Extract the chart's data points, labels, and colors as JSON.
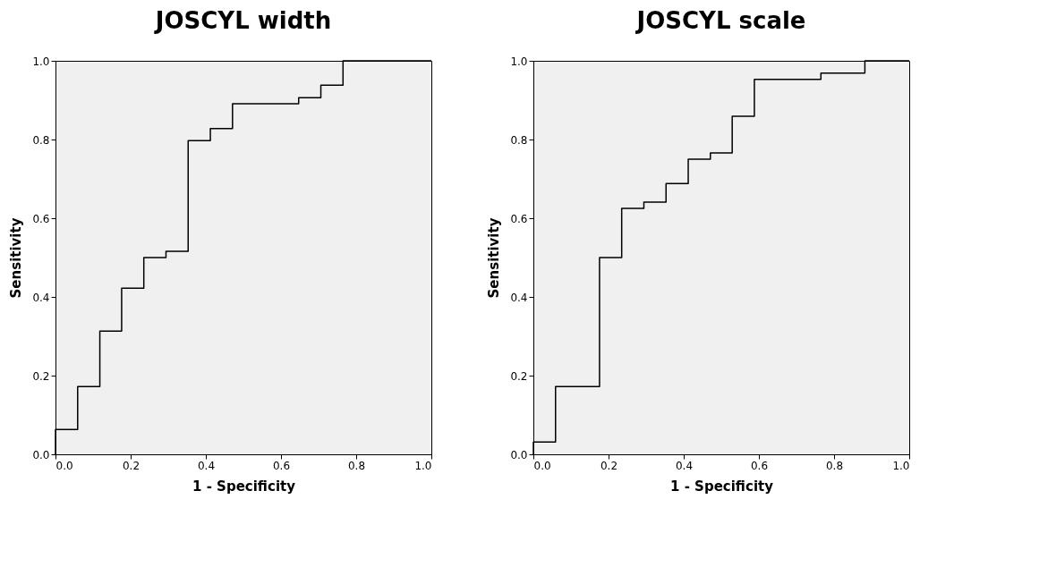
{
  "chart_data": [
    {
      "type": "step",
      "title": "JOSCYL width",
      "xlabel": "1 - Specificity",
      "ylabel": "Sensitivity",
      "xlim": [
        0,
        1
      ],
      "ylim": [
        0,
        1
      ],
      "xticks": [
        {
          "value": 0,
          "label": "0.0"
        },
        {
          "value": 0.2,
          "label": "0.2"
        },
        {
          "value": 0.4,
          "label": "0.4"
        },
        {
          "value": 0.6,
          "label": "0.6"
        },
        {
          "value": 0.8,
          "label": "0.8"
        },
        {
          "value": 1,
          "label": "1.0"
        }
      ],
      "yticks": [
        {
          "value": 0,
          "label": "0.0"
        },
        {
          "value": 0.2,
          "label": "0.2"
        },
        {
          "value": 0.4,
          "label": "0.4"
        },
        {
          "value": 0.6,
          "label": "0.6"
        },
        {
          "value": 0.8,
          "label": "0.8"
        },
        {
          "value": 1,
          "label": "1.0"
        }
      ],
      "grid": false,
      "marker": "none",
      "line_style": "solid",
      "series": [
        {
          "color": "#000000",
          "x": [
            0,
            0,
            0.059,
            0.118,
            0.176,
            0.235,
            0.294,
            0.353,
            0.353,
            0.412,
            0.471,
            0.647,
            0.706,
            0.765,
            1.0
          ],
          "values": [
            0,
            0.063,
            0.172,
            0.313,
            0.422,
            0.5,
            0.516,
            0.531,
            0.797,
            0.828,
            0.891,
            0.906,
            0.938,
            1.0,
            1.0
          ]
        }
      ]
    },
    {
      "type": "step",
      "title": "JOSCYL scale",
      "xlabel": "1 - Specificity",
      "ylabel": "Sensitivity",
      "xlim": [
        0,
        1
      ],
      "ylim": [
        0,
        1
      ],
      "xticks": [
        {
          "value": 0,
          "label": "0.0"
        },
        {
          "value": 0.2,
          "label": "0.2"
        },
        {
          "value": 0.4,
          "label": "0.4"
        },
        {
          "value": 0.6,
          "label": "0.6"
        },
        {
          "value": 0.8,
          "label": "0.8"
        },
        {
          "value": 1,
          "label": "1.0"
        }
      ],
      "yticks": [
        {
          "value": 0,
          "label": "0.0"
        },
        {
          "value": 0.2,
          "label": "0.2"
        },
        {
          "value": 0.4,
          "label": "0.4"
        },
        {
          "value": 0.6,
          "label": "0.6"
        },
        {
          "value": 0.8,
          "label": "0.8"
        },
        {
          "value": 1,
          "label": "1.0"
        }
      ],
      "grid": false,
      "marker": "none",
      "line_style": "solid",
      "series": [
        {
          "color": "#000000",
          "x": [
            0,
            0,
            0.059,
            0.176,
            0.235,
            0.294,
            0.353,
            0.412,
            0.471,
            0.529,
            0.588,
            0.765,
            0.882,
            1.0
          ],
          "values": [
            0,
            0.031,
            0.172,
            0.5,
            0.625,
            0.641,
            0.688,
            0.75,
            0.766,
            0.859,
            0.953,
            0.969,
            1.0,
            1.0
          ]
        }
      ]
    }
  ]
}
